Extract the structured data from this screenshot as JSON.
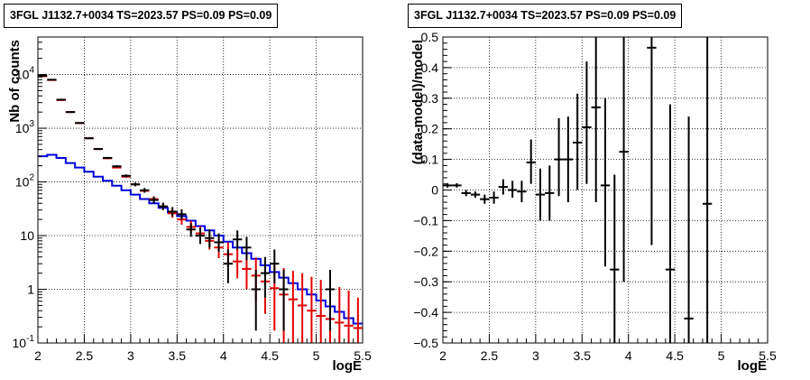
{
  "chart_data": [
    {
      "type": "line",
      "title": "3FGL J1132.7+0034 TS=2023.57 PS=0.09 PS=0.09",
      "xlabel": "logE",
      "ylabel": "Nb of counts",
      "xlim": [
        2,
        5.5
      ],
      "ylim": [
        0.1,
        50000
      ],
      "yscale": "log",
      "grid": true,
      "x_ticks": [
        "2",
        "2.5",
        "3",
        "3.5",
        "4",
        "4.5",
        "5",
        "5.5"
      ],
      "y_ticks": [
        {
          "v": 0.1,
          "base": "10",
          "exp": "-1"
        },
        {
          "v": 1,
          "base": "1",
          "exp": ""
        },
        {
          "v": 10,
          "base": "10",
          "exp": ""
        },
        {
          "v": 100,
          "base": "10",
          "exp": "2"
        },
        {
          "v": 1000,
          "base": "10",
          "exp": "3"
        },
        {
          "v": 10000,
          "base": "10",
          "exp": "4"
        }
      ],
      "bin_width": 0.1,
      "series": [
        {
          "role": "data",
          "color": "#000000",
          "points": [
            {
              "x": 2.05,
              "y": 9500,
              "lo": 9400,
              "hi": 9600
            },
            {
              "x": 2.15,
              "y": 8000,
              "lo": 7900,
              "hi": 8100
            },
            {
              "x": 2.25,
              "y": 3400,
              "lo": 3350,
              "hi": 3450
            },
            {
              "x": 2.35,
              "y": 2000,
              "lo": 1960,
              "hi": 2040
            },
            {
              "x": 2.45,
              "y": 1250,
              "lo": 1220,
              "hi": 1280
            },
            {
              "x": 2.55,
              "y": 650,
              "lo": 630,
              "hi": 670
            },
            {
              "x": 2.65,
              "y": 410,
              "lo": 395,
              "hi": 425
            },
            {
              "x": 2.75,
              "y": 280,
              "lo": 268,
              "hi": 292
            },
            {
              "x": 2.85,
              "y": 195,
              "lo": 185,
              "hi": 205
            },
            {
              "x": 2.95,
              "y": 130,
              "lo": 122,
              "hi": 138
            },
            {
              "x": 3.05,
              "y": 90,
              "lo": 83,
              "hi": 97
            },
            {
              "x": 3.15,
              "y": 70,
              "lo": 63,
              "hi": 77
            },
            {
              "x": 3.25,
              "y": 46,
              "lo": 40,
              "hi": 53
            },
            {
              "x": 3.35,
              "y": 35,
              "lo": 30,
              "hi": 41
            },
            {
              "x": 3.45,
              "y": 28,
              "lo": 23,
              "hi": 34
            },
            {
              "x": 3.55,
              "y": 25,
              "lo": 20,
              "hi": 31
            },
            {
              "x": 3.65,
              "y": 13,
              "lo": 9.5,
              "hi": 17
            },
            {
              "x": 3.75,
              "y": 10,
              "lo": 7,
              "hi": 14
            },
            {
              "x": 3.85,
              "y": 9,
              "lo": 6,
              "hi": 13
            },
            {
              "x": 3.95,
              "y": 7.5,
              "lo": 5,
              "hi": 11
            },
            {
              "x": 4.05,
              "y": 3,
              "lo": 1.3,
              "hi": 5.5
            },
            {
              "x": 4.15,
              "y": 8.5,
              "lo": 5.5,
              "hi": 12.5
            },
            {
              "x": 4.25,
              "y": 6,
              "lo": 3.5,
              "hi": 9.5
            },
            {
              "x": 4.35,
              "y": 1,
              "lo": 0.17,
              "hi": 2.3
            },
            {
              "x": 4.45,
              "y": 2,
              "lo": 0.7,
              "hi": 4
            },
            {
              "x": 4.55,
              "y": 3,
              "lo": 1.3,
              "hi": 5.5
            },
            {
              "x": 4.65,
              "y": 1,
              "lo": 0.17,
              "hi": 2.3
            },
            {
              "x": 5.15,
              "y": 1,
              "lo": 0.17,
              "hi": 2.3
            }
          ]
        },
        {
          "role": "model",
          "color": "#e00000",
          "points": [
            {
              "x": 2.05,
              "y": 9300,
              "lo": 9300,
              "hi": 9300
            },
            {
              "x": 2.15,
              "y": 7900,
              "lo": 7900,
              "hi": 7900
            },
            {
              "x": 2.25,
              "y": 3350,
              "lo": 3350,
              "hi": 3350
            },
            {
              "x": 2.35,
              "y": 2000,
              "lo": 2000,
              "hi": 2000
            },
            {
              "x": 2.45,
              "y": 1250,
              "lo": 1250,
              "hi": 1250
            },
            {
              "x": 2.55,
              "y": 650,
              "lo": 650,
              "hi": 650
            },
            {
              "x": 2.65,
              "y": 410,
              "lo": 410,
              "hi": 410
            },
            {
              "x": 2.75,
              "y": 275,
              "lo": 275,
              "hi": 275
            },
            {
              "x": 2.85,
              "y": 185,
              "lo": 185,
              "hi": 185
            },
            {
              "x": 2.95,
              "y": 125,
              "lo": 125,
              "hi": 125
            },
            {
              "x": 3.05,
              "y": 90,
              "lo": 90,
              "hi": 90
            },
            {
              "x": 3.15,
              "y": 68,
              "lo": 68,
              "hi": 68
            },
            {
              "x": 3.25,
              "y": 48,
              "lo": 42,
              "hi": 54
            },
            {
              "x": 3.35,
              "y": 35,
              "lo": 30,
              "hi": 41
            },
            {
              "x": 3.45,
              "y": 26,
              "lo": 21.5,
              "hi": 31
            },
            {
              "x": 3.55,
              "y": 20,
              "lo": 16,
              "hi": 25
            },
            {
              "x": 3.65,
              "y": 14.5,
              "lo": 11,
              "hi": 19
            },
            {
              "x": 3.75,
              "y": 11,
              "lo": 8,
              "hi": 15
            },
            {
              "x": 3.85,
              "y": 8,
              "lo": 5.5,
              "hi": 11.5
            },
            {
              "x": 3.95,
              "y": 6,
              "lo": 3.8,
              "hi": 9
            },
            {
              "x": 4.05,
              "y": 4.5,
              "lo": 2.6,
              "hi": 7.5
            },
            {
              "x": 4.15,
              "y": 3.3,
              "lo": 1.6,
              "hi": 6
            },
            {
              "x": 4.25,
              "y": 2.4,
              "lo": 1,
              "hi": 4.6
            },
            {
              "x": 4.35,
              "y": 1.8,
              "lo": 0.6,
              "hi": 3.9
            },
            {
              "x": 4.45,
              "y": 1.4,
              "lo": 0.35,
              "hi": 3.3
            },
            {
              "x": 4.55,
              "y": 1.05,
              "lo": 0.17,
              "hi": 2.8
            },
            {
              "x": 4.65,
              "y": 0.8,
              "lo": 0.1,
              "hi": 2.5
            },
            {
              "x": 4.75,
              "y": 0.65,
              "lo": 0.1,
              "hi": 2.2
            },
            {
              "x": 4.85,
              "y": 0.5,
              "lo": 0.1,
              "hi": 2
            },
            {
              "x": 4.95,
              "y": 0.4,
              "lo": 0.1,
              "hi": 1.7
            },
            {
              "x": 5.05,
              "y": 0.32,
              "lo": 0.1,
              "hi": 1.5
            },
            {
              "x": 5.15,
              "y": 0.28,
              "lo": 0.1,
              "hi": 1.3
            },
            {
              "x": 5.25,
              "y": 0.24,
              "lo": 0.1,
              "hi": 1.1
            },
            {
              "x": 5.35,
              "y": 0.21,
              "lo": 0.1,
              "hi": 0.95
            },
            {
              "x": 5.45,
              "y": 0.19,
              "lo": 0.1,
              "hi": 0.7
            }
          ]
        },
        {
          "role": "background",
          "color": "#0000dd",
          "step_edges_x": [
            2.0,
            2.1,
            2.2,
            2.3,
            2.4,
            2.5,
            2.6,
            2.7,
            2.8,
            2.9,
            3.0,
            3.1,
            3.2,
            3.3,
            3.4,
            3.5,
            3.6,
            3.7,
            3.8,
            3.9,
            4.0,
            4.1,
            4.2,
            4.3,
            4.4,
            4.5,
            4.6,
            4.7,
            4.8,
            4.9,
            5.0,
            5.1,
            5.2,
            5.3,
            5.4,
            5.5
          ],
          "step_values": [
            300,
            320,
            280,
            225,
            185,
            155,
            125,
            105,
            85,
            70,
            58,
            48,
            40,
            33,
            27,
            23,
            19,
            15,
            12.5,
            10,
            7.7,
            6,
            4.7,
            3.7,
            2.8,
            2.1,
            1.65,
            1.3,
            1.0,
            0.8,
            0.62,
            0.48,
            0.38,
            0.29,
            0.23
          ]
        }
      ]
    },
    {
      "type": "scatter",
      "title": "3FGL J1132.7+0034 TS=2023.57 PS=0.09 PS=0.09",
      "xlabel": "logE",
      "ylabel": "(data-model)/model",
      "xlim": [
        2,
        5.5
      ],
      "ylim": [
        -0.5,
        0.5
      ],
      "grid": true,
      "x_ticks": [
        "2",
        "2.5",
        "3",
        "3.5",
        "4",
        "4.5",
        "5",
        "5.5"
      ],
      "y_ticks": [
        "-0.5",
        "-0.4",
        "-0.3",
        "-0.2",
        "-0.1",
        "0",
        "0.1",
        "0.2",
        "0.3",
        "0.4",
        "0.5"
      ],
      "bin_width": 0.1,
      "points": [
        {
          "x": 2.05,
          "y": 0.015,
          "lo": 0.008,
          "hi": 0.022
        },
        {
          "x": 2.15,
          "y": 0.015,
          "lo": 0.008,
          "hi": 0.022
        },
        {
          "x": 2.25,
          "y": -0.01,
          "lo": -0.02,
          "hi": 0.0
        },
        {
          "x": 2.35,
          "y": -0.015,
          "lo": -0.025,
          "hi": -0.005
        },
        {
          "x": 2.45,
          "y": -0.03,
          "lo": -0.045,
          "hi": -0.015
        },
        {
          "x": 2.55,
          "y": -0.025,
          "lo": -0.045,
          "hi": -0.005
        },
        {
          "x": 2.65,
          "y": 0.01,
          "lo": -0.015,
          "hi": 0.035
        },
        {
          "x": 2.75,
          "y": 0.0,
          "lo": -0.025,
          "hi": 0.03
        },
        {
          "x": 2.85,
          "y": -0.005,
          "lo": -0.04,
          "hi": 0.03
        },
        {
          "x": 2.95,
          "y": 0.09,
          "lo": 0.02,
          "hi": 0.165
        },
        {
          "x": 3.05,
          "y": -0.015,
          "lo": -0.1,
          "hi": 0.07
        },
        {
          "x": 3.15,
          "y": -0.01,
          "lo": -0.1,
          "hi": 0.08
        },
        {
          "x": 3.25,
          "y": 0.1,
          "lo": -0.02,
          "hi": 0.235
        },
        {
          "x": 3.35,
          "y": 0.1,
          "lo": -0.04,
          "hi": 0.24
        },
        {
          "x": 3.45,
          "y": 0.155,
          "lo": 0.0,
          "hi": 0.315
        },
        {
          "x": 3.55,
          "y": 0.205,
          "lo": 0.02,
          "hi": 0.42
        },
        {
          "x": 3.65,
          "y": 0.27,
          "lo": -0.04,
          "hi": 0.5
        },
        {
          "x": 3.75,
          "y": 0.015,
          "lo": -0.25,
          "hi": 0.3
        },
        {
          "x": 3.85,
          "y": -0.26,
          "lo": -0.5,
          "hi": 0.05
        },
        {
          "x": 3.95,
          "y": 0.125,
          "lo": -0.3,
          "hi": 0.5
        },
        {
          "x": 4.25,
          "y": 0.465,
          "lo": -0.18,
          "hi": 0.5
        },
        {
          "x": 4.45,
          "y": -0.26,
          "lo": -0.5,
          "hi": 0.28
        },
        {
          "x": 4.65,
          "y": -0.42,
          "lo": -0.5,
          "hi": 0.24
        },
        {
          "x": 4.85,
          "y": -0.045,
          "lo": -0.5,
          "hi": 0.5
        }
      ]
    }
  ]
}
